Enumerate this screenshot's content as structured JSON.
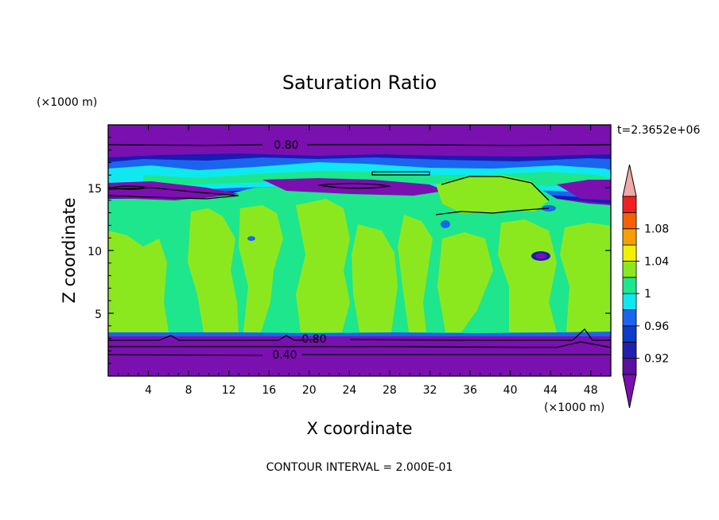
{
  "chart_data": {
    "type": "contour",
    "title": "Saturation Ratio",
    "xlabel": "X coordinate",
    "ylabel": "Z coordinate",
    "x_unit": "(×1000 m)",
    "y_unit": "(×1000 m)",
    "time_label": "t=2.3652e+06",
    "footer": "CONTOUR INTERVAL = 2.000E-01",
    "xlim": [
      0,
      50
    ],
    "ylim": [
      0,
      20
    ],
    "x_ticks": [
      4,
      8,
      12,
      16,
      20,
      24,
      28,
      32,
      36,
      40,
      44,
      48
    ],
    "y_ticks": [
      5,
      10,
      15
    ],
    "contour_labels": [
      "0.80",
      "0.80",
      "0.40"
    ],
    "colorbar": {
      "labels": [
        "0.92",
        "0.96",
        "1",
        "1.04",
        "1.08"
      ],
      "levels": [
        0.9,
        0.92,
        0.94,
        0.96,
        0.98,
        1.0,
        1.02,
        1.04,
        1.06,
        1.08,
        1.1
      ],
      "colors": [
        "#5a0f9e",
        "#2020b0",
        "#0a3cc8",
        "#1a64f0",
        "#10e8f0",
        "#1ee68c",
        "#8ce81e",
        "#f0f000",
        "#f5a000",
        "#f56000",
        "#f02020"
      ],
      "under_color": "#7a10b0",
      "over_color": "#f0a8a8"
    },
    "colors": {
      "purple": "#7a10b0",
      "deep_blue": "#1a1ab4",
      "blue": "#1a64f0",
      "cyan": "#10e8f0",
      "green": "#1ee68c",
      "yellow_green": "#8ce81e"
    }
  }
}
